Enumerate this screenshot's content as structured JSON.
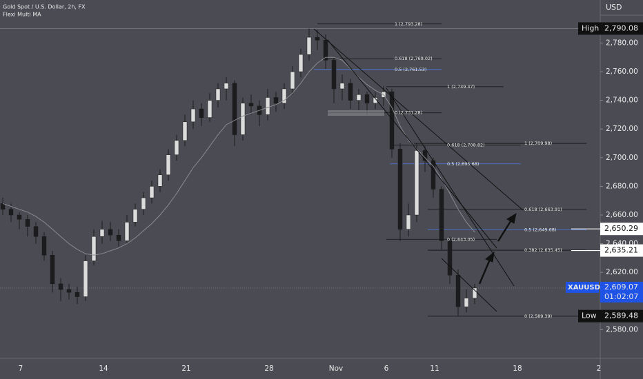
{
  "chart_data": {
    "type": "candlestick",
    "title": "Gold Spot / U.S. Dollar, 2h, FX",
    "subtitle": "Flexi Multi MA",
    "currency": "USD",
    "x_labels": [
      "7",
      "14",
      "21",
      "28",
      "Nov",
      "6",
      "11",
      "18",
      "2"
    ],
    "ylim": [
      2560,
      2810
    ],
    "yticks": [
      {
        "value": 2580,
        "label": "2,580.00"
      },
      {
        "value": 2620,
        "label": "2,620.00"
      },
      {
        "value": 2640,
        "label": "2,640.00"
      },
      {
        "value": 2660,
        "label": "2,660.00"
      },
      {
        "value": 2680,
        "label": "2,680.00"
      },
      {
        "value": 2700,
        "label": "2,700.00"
      },
      {
        "value": 2720,
        "label": "2,720.00"
      },
      {
        "value": 2740,
        "label": "2,740.00"
      },
      {
        "value": 2760,
        "label": "2,760.00"
      },
      {
        "value": 2780,
        "label": "2,780.00"
      }
    ],
    "up_color": "#dcdcdc",
    "down_color": "#1c1c1e",
    "ma_color": "#8a8a90",
    "candles": {
      "open": [
        2668,
        2664,
        2660,
        2657,
        2652,
        2645,
        2632,
        2612,
        2608,
        2606,
        2603,
        2628,
        2645,
        2650,
        2646,
        2642,
        2655,
        2664,
        2672,
        2680,
        2688,
        2702,
        2712,
        2725,
        2734,
        2728,
        2740,
        2748,
        2752,
        2716,
        2738,
        2736,
        2730,
        2742,
        2738,
        2748,
        2760,
        2772,
        2784,
        2782,
        2768,
        2748,
        2752,
        2740,
        2744,
        2738,
        2742,
        2746,
        2706,
        2650,
        2660,
        2705,
        2698,
        2678,
        2642,
        2618,
        2596,
        2602
      ],
      "high": [
        2672,
        2668,
        2662,
        2660,
        2655,
        2648,
        2635,
        2616,
        2612,
        2610,
        2632,
        2650,
        2656,
        2655,
        2650,
        2660,
        2668,
        2676,
        2684,
        2692,
        2706,
        2716,
        2730,
        2740,
        2738,
        2745,
        2752,
        2756,
        2754,
        2742,
        2744,
        2740,
        2748,
        2746,
        2752,
        2764,
        2776,
        2790.08,
        2789,
        2786,
        2770,
        2758,
        2755,
        2748,
        2746,
        2746,
        2750,
        2748,
        2710,
        2668,
        2710,
        2708,
        2700,
        2680,
        2645,
        2622,
        2608,
        2612
      ],
      "low": [
        2660,
        2655,
        2650,
        2645,
        2640,
        2628,
        2606,
        2600,
        2601,
        2598,
        2600,
        2625,
        2640,
        2642,
        2638,
        2640,
        2652,
        2660,
        2668,
        2676,
        2684,
        2698,
        2708,
        2720,
        2722,
        2725,
        2735,
        2740,
        2708,
        2712,
        2730,
        2722,
        2726,
        2732,
        2734,
        2744,
        2756,
        2768,
        2775,
        2762,
        2738,
        2740,
        2734,
        2733,
        2730,
        2734,
        2736,
        2700,
        2642,
        2645,
        2655,
        2690,
        2672,
        2636,
        2612,
        2589.48,
        2592,
        2598
      ],
      "close": [
        2664,
        2660,
        2657,
        2652,
        2645,
        2632,
        2612,
        2608,
        2606,
        2603,
        2628,
        2645,
        2650,
        2646,
        2642,
        2655,
        2664,
        2672,
        2680,
        2688,
        2702,
        2712,
        2725,
        2734,
        2728,
        2740,
        2748,
        2752,
        2716,
        2738,
        2736,
        2730,
        2742,
        2738,
        2748,
        2760,
        2772,
        2784,
        2782,
        2768,
        2748,
        2752,
        2740,
        2744,
        2738,
        2742,
        2746,
        2706,
        2650,
        2660,
        2705,
        2698,
        2678,
        2642,
        2618,
        2596,
        2602,
        2609.07
      ]
    },
    "ma": [
      2668,
      2666,
      2664,
      2662,
      2659,
      2655,
      2650,
      2645,
      2640,
      2636,
      2633,
      2632,
      2633,
      2635,
      2637,
      2640,
      2644,
      2649,
      2654,
      2660,
      2667,
      2675,
      2684,
      2693,
      2700,
      2708,
      2716,
      2723,
      2726,
      2729,
      2731,
      2733,
      2735,
      2737,
      2740,
      2745,
      2752,
      2760,
      2766,
      2770,
      2770,
      2768,
      2762,
      2756,
      2751,
      2747,
      2744,
      2735,
      2722,
      2712,
      2706,
      2700,
      2694,
      2685,
      2675,
      2664,
      2655,
      2648
    ],
    "fib_levels": [
      {
        "label": "1 (2,793.28)",
        "value": 2793.28,
        "color": "#d0d0d0"
      },
      {
        "label": "0.618 (2,769.02)",
        "value": 2769.02,
        "color": "#d0d0d0"
      },
      {
        "label": "0.5 (2,761.53)",
        "value": 2761.53,
        "color": "#4a78e0"
      },
      {
        "label": "0 (2,731.28)",
        "value": 2731.28,
        "color": "#d0d0d0"
      },
      {
        "label": "1 (2,749.47)",
        "value": 2749.47,
        "color": "#d0d0d0"
      },
      {
        "label": "0.618 (2,708.82)",
        "value": 2708.82,
        "color": "#d0d0d0"
      },
      {
        "label": "0.5 (2,695.68)",
        "value": 2695.68,
        "color": "#4a78e0"
      },
      {
        "label": "0 (2,643.05)",
        "value": 2643.05,
        "color": "#d0d0d0"
      },
      {
        "label": "1 (2,709.98)",
        "value": 2709.98,
        "color": "#d0d0d0"
      },
      {
        "label": "0.618 (2,663.91)",
        "value": 2663.91,
        "color": "#d0d0d0"
      },
      {
        "label": "0.5 (2,649.68)",
        "value": 2649.68,
        "color": "#4a78e0"
      },
      {
        "label": "0.382 (2,635.45)",
        "value": 2635.45,
        "color": "#d0d0d0"
      },
      {
        "label": "0 (2,589.39)",
        "value": 2589.39,
        "color": "#d0d0d0"
      }
    ],
    "price_labels": [
      {
        "name": "High",
        "value": 2790.08,
        "label": "2,790.08"
      },
      {
        "name": "Low",
        "value": 2589.48,
        "label": "2,589.48"
      }
    ],
    "marked_levels": [
      {
        "value": 2650.29,
        "label": "2,650.29"
      },
      {
        "value": 2635.21,
        "label": "2,635.21"
      }
    ],
    "last_price": {
      "symbol": "XAUUSD",
      "value": 2609.07,
      "label": "2,609.07",
      "countdown": "01:02:07",
      "color": "#1e53e5"
    }
  }
}
